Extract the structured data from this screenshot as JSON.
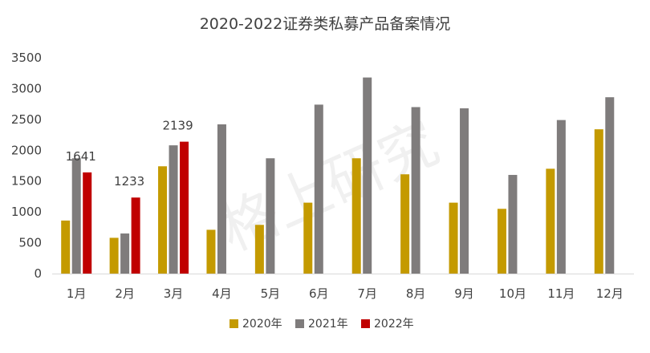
{
  "chart_data": {
    "type": "bar",
    "title": "2020-2022证券类私募产品备案情况",
    "xlabel": "",
    "ylabel": "",
    "ylim": [
      0,
      3500
    ],
    "yticks": [
      0,
      500,
      1000,
      1500,
      2000,
      2500,
      3000,
      3500
    ],
    "grid": false,
    "legend_position": "bottom",
    "categories": [
      "1月",
      "2月",
      "3月",
      "4月",
      "5月",
      "6月",
      "7月",
      "8月",
      "9月",
      "10月",
      "11月",
      "12月"
    ],
    "series": [
      {
        "name": "2020年",
        "color": "#c49a00",
        "values": [
          860,
          580,
          1740,
          710,
          790,
          1150,
          1870,
          1610,
          1150,
          1050,
          1700,
          2340
        ]
      },
      {
        "name": "2021年",
        "color": "#7f7c7c",
        "values": [
          1870,
          650,
          2080,
          2420,
          1870,
          2740,
          3180,
          2700,
          2680,
          1600,
          2490,
          2860
        ]
      },
      {
        "name": "2022年",
        "color": "#c00000",
        "values": [
          1641,
          1233,
          2139,
          null,
          null,
          null,
          null,
          null,
          null,
          null,
          null,
          null
        ],
        "data_labels": [
          "1641",
          "1233",
          "2139",
          null,
          null,
          null,
          null,
          null,
          null,
          null,
          null,
          null
        ]
      }
    ],
    "watermark": "格上研究"
  }
}
